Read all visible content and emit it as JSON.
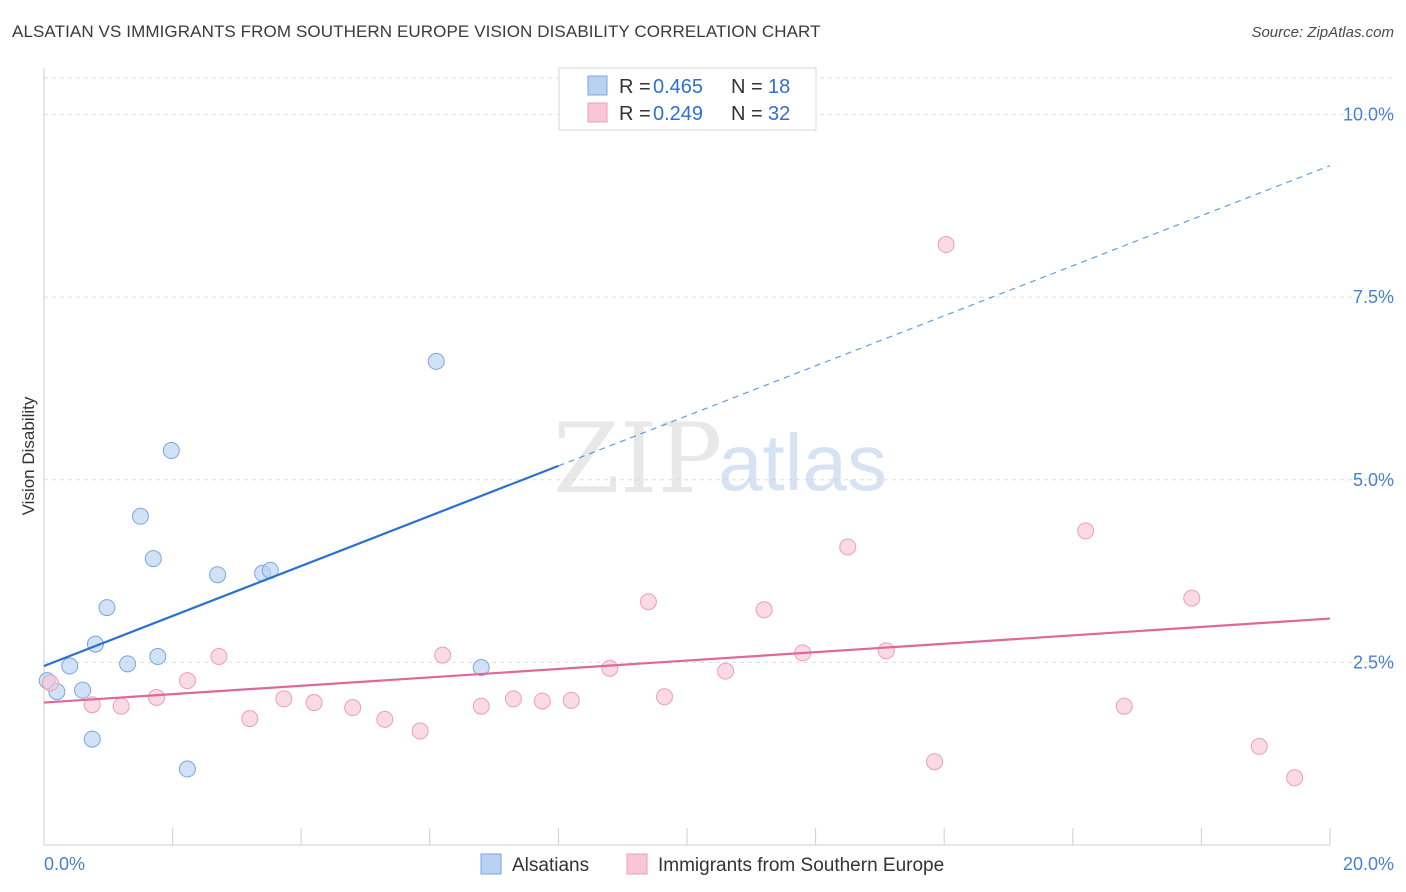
{
  "header": {
    "title": "ALSATIAN VS IMMIGRANTS FROM SOUTHERN EUROPE VISION DISABILITY CORRELATION CHART",
    "source": "Source: ZipAtlas.com"
  },
  "watermark": {
    "zip": "ZIP",
    "atlas": "atlas"
  },
  "colors": {
    "blue_fill": "#b9d2f2",
    "blue_stroke": "#7aa6e2",
    "blue_line": "#2b6fd0",
    "pink_fill": "#f8c6d6",
    "pink_stroke": "#ee9fb8",
    "pink_line": "#e0679a",
    "grid": "#dedede",
    "axis_label": "#4a7fd0"
  },
  "legend": {
    "rows": [
      {
        "r_label": "R = ",
        "r_value": "0.465",
        "n_label": "N = ",
        "n_value": "18"
      },
      {
        "r_label": "R = ",
        "r_value": "0.249",
        "n_label": "N = ",
        "n_value": "32"
      }
    ]
  },
  "chart_data": {
    "type": "scatter",
    "title": "ALSATIAN VS IMMIGRANTS FROM SOUTHERN EUROPE VISION DISABILITY CORRELATION CHART",
    "xlabel": "",
    "ylabel": "Vision Disability",
    "xlim": [
      0,
      20
    ],
    "ylim": [
      0,
      10.5
    ],
    "x_tick_labels": [
      "0.0%",
      "20.0%"
    ],
    "y_ticks": [
      2.5,
      5.0,
      7.5,
      10.0
    ],
    "y_tick_labels": [
      "2.5%",
      "5.0%",
      "7.5%",
      "10.0%"
    ],
    "grid": true,
    "legend_position": "bottom",
    "series": [
      {
        "name": "Alsatians",
        "r": 0.465,
        "n": 18,
        "points": [
          {
            "x": 0.05,
            "y": 2.25
          },
          {
            "x": 0.2,
            "y": 2.1
          },
          {
            "x": 0.4,
            "y": 2.45
          },
          {
            "x": 0.6,
            "y": 2.12
          },
          {
            "x": 0.75,
            "y": 1.45
          },
          {
            "x": 0.8,
            "y": 2.75
          },
          {
            "x": 0.98,
            "y": 3.25
          },
          {
            "x": 1.3,
            "y": 2.48
          },
          {
            "x": 1.5,
            "y": 4.5
          },
          {
            "x": 1.7,
            "y": 3.92
          },
          {
            "x": 1.77,
            "y": 2.58
          },
          {
            "x": 1.98,
            "y": 5.4
          },
          {
            "x": 2.23,
            "y": 1.04
          },
          {
            "x": 2.7,
            "y": 3.7
          },
          {
            "x": 3.4,
            "y": 3.72
          },
          {
            "x": 3.52,
            "y": 3.76
          },
          {
            "x": 6.1,
            "y": 6.62
          },
          {
            "x": 6.8,
            "y": 2.43
          }
        ],
        "trend": {
          "x0": 0.0,
          "y0": 2.45,
          "x_solid_end": 8.0,
          "x1": 20.0,
          "y1": 9.3
        }
      },
      {
        "name": "Immigrants from Southern Europe",
        "r": 0.249,
        "n": 32,
        "points": [
          {
            "x": 0.1,
            "y": 2.22
          },
          {
            "x": 0.75,
            "y": 1.92
          },
          {
            "x": 1.2,
            "y": 1.9
          },
          {
            "x": 1.75,
            "y": 2.02
          },
          {
            "x": 2.23,
            "y": 2.25
          },
          {
            "x": 2.72,
            "y": 2.58
          },
          {
            "x": 3.2,
            "y": 1.73
          },
          {
            "x": 3.73,
            "y": 2.0
          },
          {
            "x": 4.2,
            "y": 1.95
          },
          {
            "x": 4.8,
            "y": 1.88
          },
          {
            "x": 5.3,
            "y": 1.72
          },
          {
            "x": 5.85,
            "y": 1.56
          },
          {
            "x": 6.2,
            "y": 2.6
          },
          {
            "x": 6.8,
            "y": 1.9
          },
          {
            "x": 7.3,
            "y": 2.0
          },
          {
            "x": 7.75,
            "y": 1.97
          },
          {
            "x": 8.2,
            "y": 1.98
          },
          {
            "x": 8.8,
            "y": 2.42
          },
          {
            "x": 9.4,
            "y": 3.33
          },
          {
            "x": 9.65,
            "y": 2.03
          },
          {
            "x": 10.6,
            "y": 2.38
          },
          {
            "x": 11.2,
            "y": 3.22
          },
          {
            "x": 11.8,
            "y": 2.63
          },
          {
            "x": 12.5,
            "y": 4.08
          },
          {
            "x": 13.1,
            "y": 2.66
          },
          {
            "x": 13.85,
            "y": 1.14
          },
          {
            "x": 14.03,
            "y": 8.22
          },
          {
            "x": 16.2,
            "y": 4.3
          },
          {
            "x": 16.8,
            "y": 1.9
          },
          {
            "x": 17.85,
            "y": 3.38
          },
          {
            "x": 18.9,
            "y": 1.35
          },
          {
            "x": 19.45,
            "y": 0.92
          }
        ],
        "trend": {
          "x0": 0.0,
          "y0": 1.95,
          "x_solid_end": 20.0,
          "x1": 20.0,
          "y1": 3.1
        }
      }
    ]
  }
}
